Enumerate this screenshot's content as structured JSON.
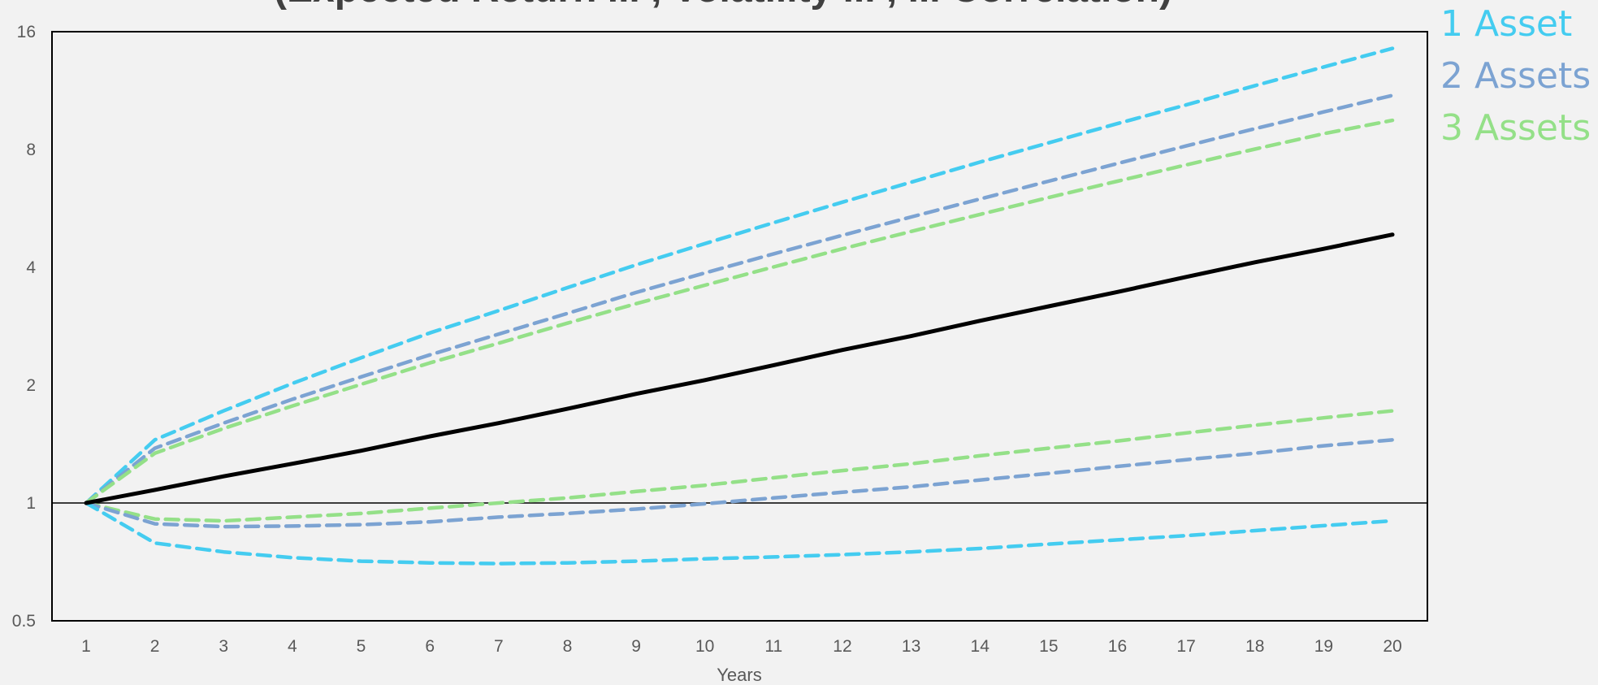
{
  "chart_data": {
    "type": "line",
    "title": "(Expected Return ... , Volatility ... , ... Correlation)",
    "xlabel": "Years",
    "ylabel": "",
    "y_scale": "log2",
    "ylim": [
      0.5,
      16
    ],
    "y_ticks": [
      0.5,
      1,
      2,
      4,
      8,
      16
    ],
    "y_tick_labels": [
      "0.5",
      "1",
      "2",
      "4",
      "8",
      "16"
    ],
    "x": [
      1,
      2,
      3,
      4,
      5,
      6,
      7,
      8,
      9,
      10,
      11,
      12,
      13,
      14,
      15,
      16,
      17,
      18,
      19,
      20
    ],
    "x_tick_labels": [
      "1",
      "2",
      "3",
      "4",
      "5",
      "6",
      "7",
      "8",
      "9",
      "10",
      "11",
      "12",
      "13",
      "14",
      "15",
      "16",
      "17",
      "18",
      "19",
      "20"
    ],
    "reference_line_y": 1,
    "grid": false,
    "legend_position": "right",
    "legend": [
      {
        "label": "1 Asset",
        "color": "#44ccf0"
      },
      {
        "label": "2 Assets",
        "color": "#7ca3d2"
      },
      {
        "label": "3 Assets",
        "color": "#94e088"
      }
    ],
    "series": [
      {
        "color": "#000000",
        "dash": "solid",
        "values": [
          1.0,
          1.08,
          1.17,
          1.26,
          1.36,
          1.48,
          1.6,
          1.74,
          1.9,
          2.06,
          2.25,
          2.46,
          2.67,
          2.92,
          3.18,
          3.46,
          3.78,
          4.12,
          4.46,
          4.85
        ]
      },
      {
        "color": "#44ccf0",
        "dash": "dashed",
        "group": "1 Asset",
        "values": [
          1.0,
          1.45,
          1.72,
          2.02,
          2.35,
          2.72,
          3.1,
          3.55,
          4.06,
          4.6,
          5.2,
          5.87,
          6.6,
          7.43,
          8.32,
          9.32,
          10.4,
          11.65,
          13.0,
          14.5
        ]
      },
      {
        "color": "#7ca3d2",
        "dash": "dashed",
        "group": "2 Assets",
        "values": [
          1.0,
          1.38,
          1.6,
          1.84,
          2.1,
          2.39,
          2.7,
          3.05,
          3.45,
          3.87,
          4.33,
          4.83,
          5.38,
          5.98,
          6.64,
          7.37,
          8.17,
          9.04,
          9.98,
          11.0
        ]
      },
      {
        "color": "#94e088",
        "dash": "dashed",
        "group": "3 Assets",
        "values": [
          1.0,
          1.34,
          1.55,
          1.77,
          2.01,
          2.28,
          2.56,
          2.88,
          3.23,
          3.6,
          4.01,
          4.46,
          4.94,
          5.46,
          6.03,
          6.64,
          7.31,
          8.02,
          8.78,
          9.5
        ]
      },
      {
        "color": "#94e088",
        "dash": "dashed",
        "group": "3 Assets",
        "values": [
          1.0,
          0.91,
          0.9,
          0.92,
          0.94,
          0.97,
          1.0,
          1.03,
          1.07,
          1.11,
          1.16,
          1.21,
          1.26,
          1.32,
          1.38,
          1.44,
          1.51,
          1.58,
          1.65,
          1.72
        ]
      },
      {
        "color": "#7ca3d2",
        "dash": "dashed",
        "group": "2 Assets",
        "values": [
          1.0,
          0.885,
          0.87,
          0.873,
          0.88,
          0.895,
          0.92,
          0.94,
          0.965,
          0.995,
          1.03,
          1.065,
          1.1,
          1.145,
          1.19,
          1.24,
          1.29,
          1.34,
          1.4,
          1.45
        ]
      },
      {
        "color": "#44ccf0",
        "dash": "dashed",
        "group": "1 Asset",
        "values": [
          1.0,
          0.79,
          0.75,
          0.725,
          0.71,
          0.703,
          0.7,
          0.703,
          0.71,
          0.72,
          0.728,
          0.738,
          0.75,
          0.765,
          0.785,
          0.805,
          0.825,
          0.85,
          0.875,
          0.9
        ]
      }
    ]
  }
}
